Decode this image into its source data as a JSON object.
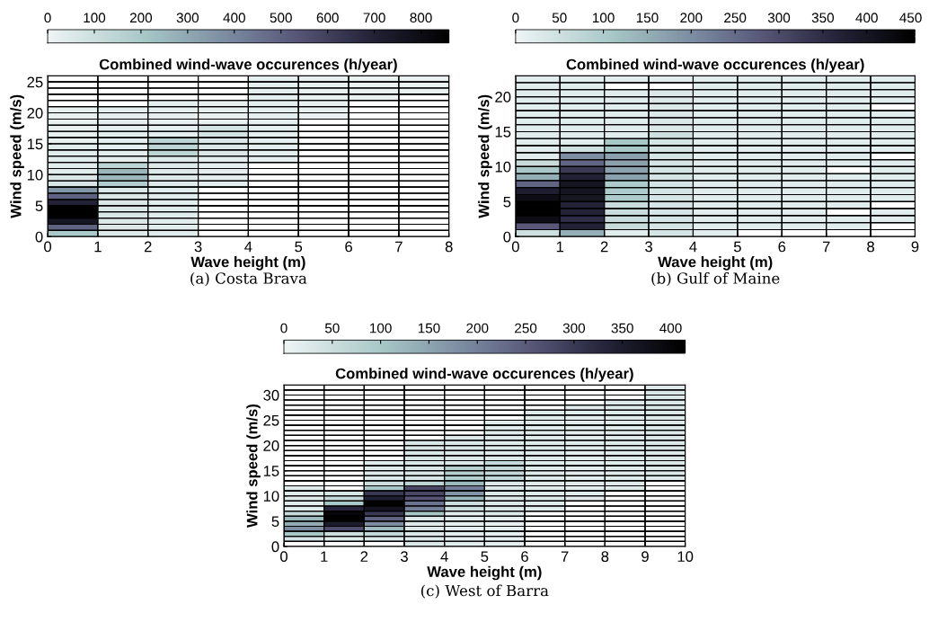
{
  "chart_data": [
    {
      "type": "heatmap",
      "title": "Combined wind-wave occurences (h/year)",
      "xlabel": "Wave height (m)",
      "ylabel": "Wind speed (m/s)",
      "annotations": [
        "(a) Costa Brava"
      ],
      "xlim": [
        0,
        8
      ],
      "xticks": [
        0,
        1,
        2,
        3,
        4,
        5,
        6,
        7,
        8
      ],
      "ylim": [
        0,
        26
      ],
      "yticks": [
        0,
        5,
        10,
        15,
        20,
        25
      ],
      "clim": [
        0,
        860
      ],
      "cticks": [
        0,
        100,
        200,
        300,
        400,
        500,
        600,
        700,
        800
      ],
      "grid": true,
      "cells": [
        [
          null,
          null,
          null,
          null,
          25,
          20,
          15,
          15
        ],
        [
          null,
          null,
          null,
          null,
          25,
          20,
          15,
          15
        ],
        [
          null,
          null,
          null,
          null,
          25,
          20,
          15,
          15
        ],
        [
          null,
          null,
          null,
          null,
          25,
          20,
          15,
          null
        ],
        [
          null,
          null,
          25,
          20,
          25,
          20,
          null,
          null
        ],
        [
          20,
          30,
          25,
          20,
          25,
          20,
          null,
          null
        ],
        [
          20,
          30,
          25,
          20,
          25,
          20,
          null,
          null
        ],
        [
          20,
          30,
          25,
          20,
          25,
          null,
          null,
          null
        ],
        [
          20,
          30,
          25,
          80,
          25,
          null,
          null,
          null
        ],
        [
          20,
          30,
          25,
          80,
          25,
          null,
          null,
          null
        ],
        [
          20,
          30,
          150,
          60,
          25,
          null,
          null,
          null
        ],
        [
          40,
          30,
          150,
          60,
          25,
          null,
          null,
          null
        ],
        [
          40,
          30,
          150,
          60,
          25,
          null,
          null,
          null
        ],
        [
          40,
          30,
          50,
          30,
          25,
          null,
          null,
          null
        ],
        [
          40,
          150,
          50,
          30,
          null,
          null,
          null,
          null
        ],
        [
          40,
          260,
          50,
          30,
          null,
          null,
          null,
          null
        ],
        [
          60,
          260,
          50,
          30,
          null,
          null,
          null,
          null
        ],
        [
          70,
          180,
          50,
          30,
          null,
          null,
          null,
          null
        ],
        [
          350,
          60,
          40,
          null,
          null,
          null,
          null,
          null
        ],
        [
          500,
          60,
          40,
          null,
          null,
          null,
          null,
          null
        ],
        [
          700,
          60,
          40,
          null,
          null,
          null,
          null,
          null
        ],
        [
          850,
          60,
          40,
          null,
          null,
          null,
          null,
          null
        ],
        [
          850,
          60,
          40,
          null,
          null,
          null,
          null,
          null
        ],
        [
          750,
          60,
          40,
          null,
          null,
          null,
          null,
          null
        ],
        [
          500,
          60,
          40,
          null,
          null,
          null,
          null,
          null
        ],
        [
          200,
          50,
          40,
          null,
          null,
          null,
          null,
          null
        ]
      ]
    },
    {
      "type": "heatmap",
      "title": "Combined wind-wave occurences (h/year)",
      "xlabel": "Wave height (m)",
      "ylabel": "Wind speed (m/s)",
      "annotations": [
        "(b) Gulf of Maine"
      ],
      "xlim": [
        0,
        9
      ],
      "xticks": [
        0,
        1,
        2,
        3,
        4,
        5,
        6,
        7,
        8,
        9
      ],
      "ylim": [
        0,
        23
      ],
      "yticks": [
        0,
        5,
        10,
        15,
        20
      ],
      "clim": [
        0,
        455
      ],
      "cticks": [
        0,
        50,
        100,
        150,
        200,
        250,
        300,
        350,
        400,
        450
      ],
      "grid": true,
      "cells": [
        [
          20,
          20,
          15,
          15,
          20,
          20,
          20,
          20,
          20
        ],
        [
          20,
          20,
          null,
          null,
          20,
          20,
          20,
          20,
          20
        ],
        [
          20,
          20,
          20,
          30,
          20,
          20,
          20,
          20,
          20
        ],
        [
          20,
          20,
          20,
          30,
          20,
          20,
          20,
          20,
          20
        ],
        [
          20,
          20,
          20,
          30,
          20,
          20,
          20,
          20,
          null
        ],
        [
          20,
          20,
          20,
          30,
          20,
          20,
          20,
          20,
          20
        ],
        [
          20,
          20,
          20,
          30,
          20,
          20,
          20,
          20,
          20
        ],
        [
          20,
          20,
          20,
          30,
          20,
          20,
          20,
          20,
          20
        ],
        [
          20,
          20,
          20,
          50,
          20,
          20,
          20,
          20,
          20
        ],
        [
          20,
          20,
          110,
          40,
          20,
          20,
          20,
          20,
          20
        ],
        [
          20,
          50,
          110,
          40,
          20,
          20,
          20,
          20,
          20
        ],
        [
          20,
          200,
          170,
          40,
          20,
          20,
          20,
          20,
          null
        ],
        [
          60,
          260,
          170,
          40,
          20,
          20,
          20,
          20,
          20
        ],
        [
          110,
          330,
          170,
          40,
          20,
          20,
          20,
          null,
          20
        ],
        [
          150,
          370,
          170,
          40,
          20,
          20,
          20,
          20,
          20
        ],
        [
          260,
          400,
          100,
          40,
          20,
          20,
          20,
          20,
          20
        ],
        [
          380,
          400,
          100,
          40,
          20,
          20,
          20,
          20,
          20
        ],
        [
          420,
          400,
          100,
          40,
          20,
          20,
          20,
          20,
          20
        ],
        [
          450,
          370,
          60,
          40,
          20,
          20,
          20,
          20,
          null
        ],
        [
          450,
          370,
          60,
          40,
          20,
          20,
          20,
          null,
          20
        ],
        [
          420,
          350,
          60,
          40,
          20,
          20,
          20,
          20,
          20
        ],
        [
          280,
          370,
          60,
          40,
          20,
          20,
          20,
          20,
          null
        ],
        [
          50,
          150,
          20,
          40,
          20,
          null,
          null,
          null,
          null
        ]
      ]
    },
    {
      "type": "heatmap",
      "title": "Combined wind-wave occurences (h/year)",
      "xlabel": "Wave height (m)",
      "ylabel": "Wind speed (m/s)",
      "annotations": [
        "(c) West of Barra"
      ],
      "xlim": [
        0,
        10
      ],
      "xticks": [
        0,
        1,
        2,
        3,
        4,
        5,
        6,
        7,
        8,
        9,
        10
      ],
      "ylim": [
        0,
        32
      ],
      "yticks": [
        0,
        5,
        10,
        15,
        20,
        25,
        30
      ],
      "clim": [
        0,
        415
      ],
      "cticks": [
        0,
        50,
        100,
        150,
        200,
        250,
        300,
        350,
        400
      ],
      "grid": true,
      "cells": [
        [
          null,
          null,
          null,
          null,
          null,
          null,
          null,
          null,
          null,
          25
        ],
        [
          null,
          null,
          null,
          null,
          null,
          null,
          null,
          null,
          null,
          25
        ],
        [
          null,
          null,
          null,
          null,
          null,
          null,
          null,
          null,
          null,
          25
        ],
        [
          null,
          null,
          null,
          null,
          null,
          null,
          null,
          null,
          20,
          25
        ],
        [
          null,
          null,
          null,
          null,
          null,
          null,
          null,
          15,
          20,
          25
        ],
        [
          null,
          null,
          null,
          null,
          null,
          null,
          20,
          15,
          20,
          25
        ],
        [
          null,
          null,
          null,
          null,
          null,
          null,
          20,
          15,
          20,
          25
        ],
        [
          null,
          null,
          null,
          null,
          null,
          20,
          20,
          15,
          20,
          25
        ],
        [
          null,
          null,
          null,
          null,
          null,
          20,
          20,
          15,
          20,
          25
        ],
        [
          null,
          null,
          null,
          null,
          null,
          20,
          20,
          15,
          20,
          25
        ],
        [
          null,
          null,
          null,
          null,
          25,
          20,
          20,
          15,
          20,
          25
        ],
        [
          null,
          null,
          null,
          30,
          25,
          20,
          20,
          15,
          20,
          25
        ],
        [
          null,
          null,
          null,
          30,
          25,
          20,
          20,
          15,
          20,
          25
        ],
        [
          null,
          null,
          null,
          30,
          25,
          20,
          20,
          15,
          20,
          25
        ],
        [
          null,
          null,
          null,
          30,
          25,
          20,
          20,
          15,
          20,
          25
        ],
        [
          null,
          null,
          20,
          30,
          25,
          60,
          20,
          15,
          20,
          25
        ],
        [
          null,
          null,
          20,
          30,
          80,
          60,
          20,
          15,
          20,
          25
        ],
        [
          null,
          null,
          20,
          30,
          80,
          60,
          20,
          15,
          20,
          25
        ],
        [
          null,
          null,
          20,
          30,
          80,
          60,
          20,
          15,
          20,
          25
        ],
        [
          null,
          null,
          50,
          70,
          120,
          25,
          20,
          15,
          20,
          null
        ],
        [
          20,
          null,
          100,
          280,
          200,
          25,
          20,
          15,
          20,
          null
        ],
        [
          20,
          30,
          300,
          280,
          170,
          25,
          20,
          15,
          null,
          null
        ],
        [
          20,
          60,
          340,
          260,
          120,
          25,
          20,
          15,
          null,
          null
        ],
        [
          20,
          100,
          410,
          220,
          50,
          25,
          20,
          null,
          null,
          null
        ],
        [
          20,
          330,
          370,
          200,
          50,
          25,
          20,
          null,
          null,
          null
        ],
        [
          60,
          400,
          300,
          100,
          15,
          25,
          null,
          null,
          null,
          null
        ],
        [
          120,
          410,
          240,
          25,
          15,
          10,
          null,
          null,
          null,
          null
        ],
        [
          140,
          350,
          180,
          25,
          15,
          10,
          null,
          null,
          null,
          null
        ],
        [
          180,
          270,
          120,
          25,
          15,
          10,
          null,
          null,
          null,
          null
        ],
        [
          100,
          50,
          60,
          25,
          15,
          10,
          null,
          null,
          null,
          null
        ],
        [
          40,
          20,
          30,
          25,
          15,
          10,
          null,
          null,
          null,
          null
        ],
        [
          null,
          null,
          null,
          25,
          15,
          10,
          null,
          null,
          null,
          null
        ]
      ]
    }
  ]
}
